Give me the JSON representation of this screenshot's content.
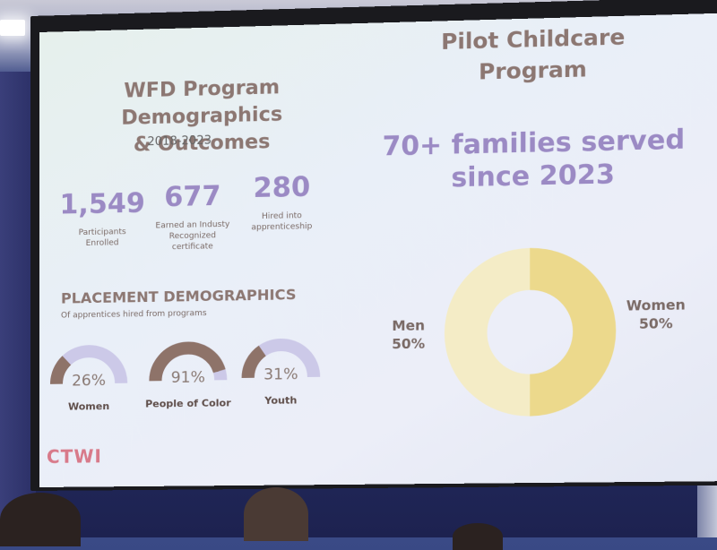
{
  "left_panel": {
    "title_line1": "WFD Program Demographics",
    "title_line2": "& Outcomes",
    "years": "2018-2023",
    "stats": [
      {
        "value": "1,549",
        "label_line1": "Participants",
        "label_line2": "Enrolled",
        "label_line3": ""
      },
      {
        "value": "677",
        "label_line1": "Earned an Industy",
        "label_line2": "Recognized",
        "label_line3": "certificate"
      },
      {
        "value": "280",
        "label_line1": "Hired into",
        "label_line2": "apprenticeship",
        "label_line3": ""
      }
    ],
    "placement_title": "PLACEMENT DEMOGRAPHICS",
    "placement_subtitle": "Of apprentices hired from programs",
    "gauges": [
      {
        "pct_label": "26%",
        "pct": 0.26,
        "label": "Women"
      },
      {
        "pct_label": "91%",
        "pct": 0.91,
        "label": "People of Color"
      },
      {
        "pct_label": "31%",
        "pct": 0.31,
        "label": "Youth"
      }
    ],
    "logo": "CTWI"
  },
  "right_panel": {
    "title_line1": "Pilot Childcare",
    "title_line2": "Program",
    "headline_line1": "70+ families served",
    "headline_line2": "since 2023",
    "donut": [
      {
        "label": "Men",
        "pct_label": "50%",
        "pct": 0.5,
        "color": "#f4ecc6"
      },
      {
        "label": "Women",
        "pct_label": "50%",
        "pct": 0.5,
        "color": "#ecd98c"
      }
    ]
  },
  "colors": {
    "title": "#8c7772",
    "accent": "#9b8ac4",
    "gauge_fill": "#8e7369",
    "gauge_track": "#ccc9e8"
  }
}
